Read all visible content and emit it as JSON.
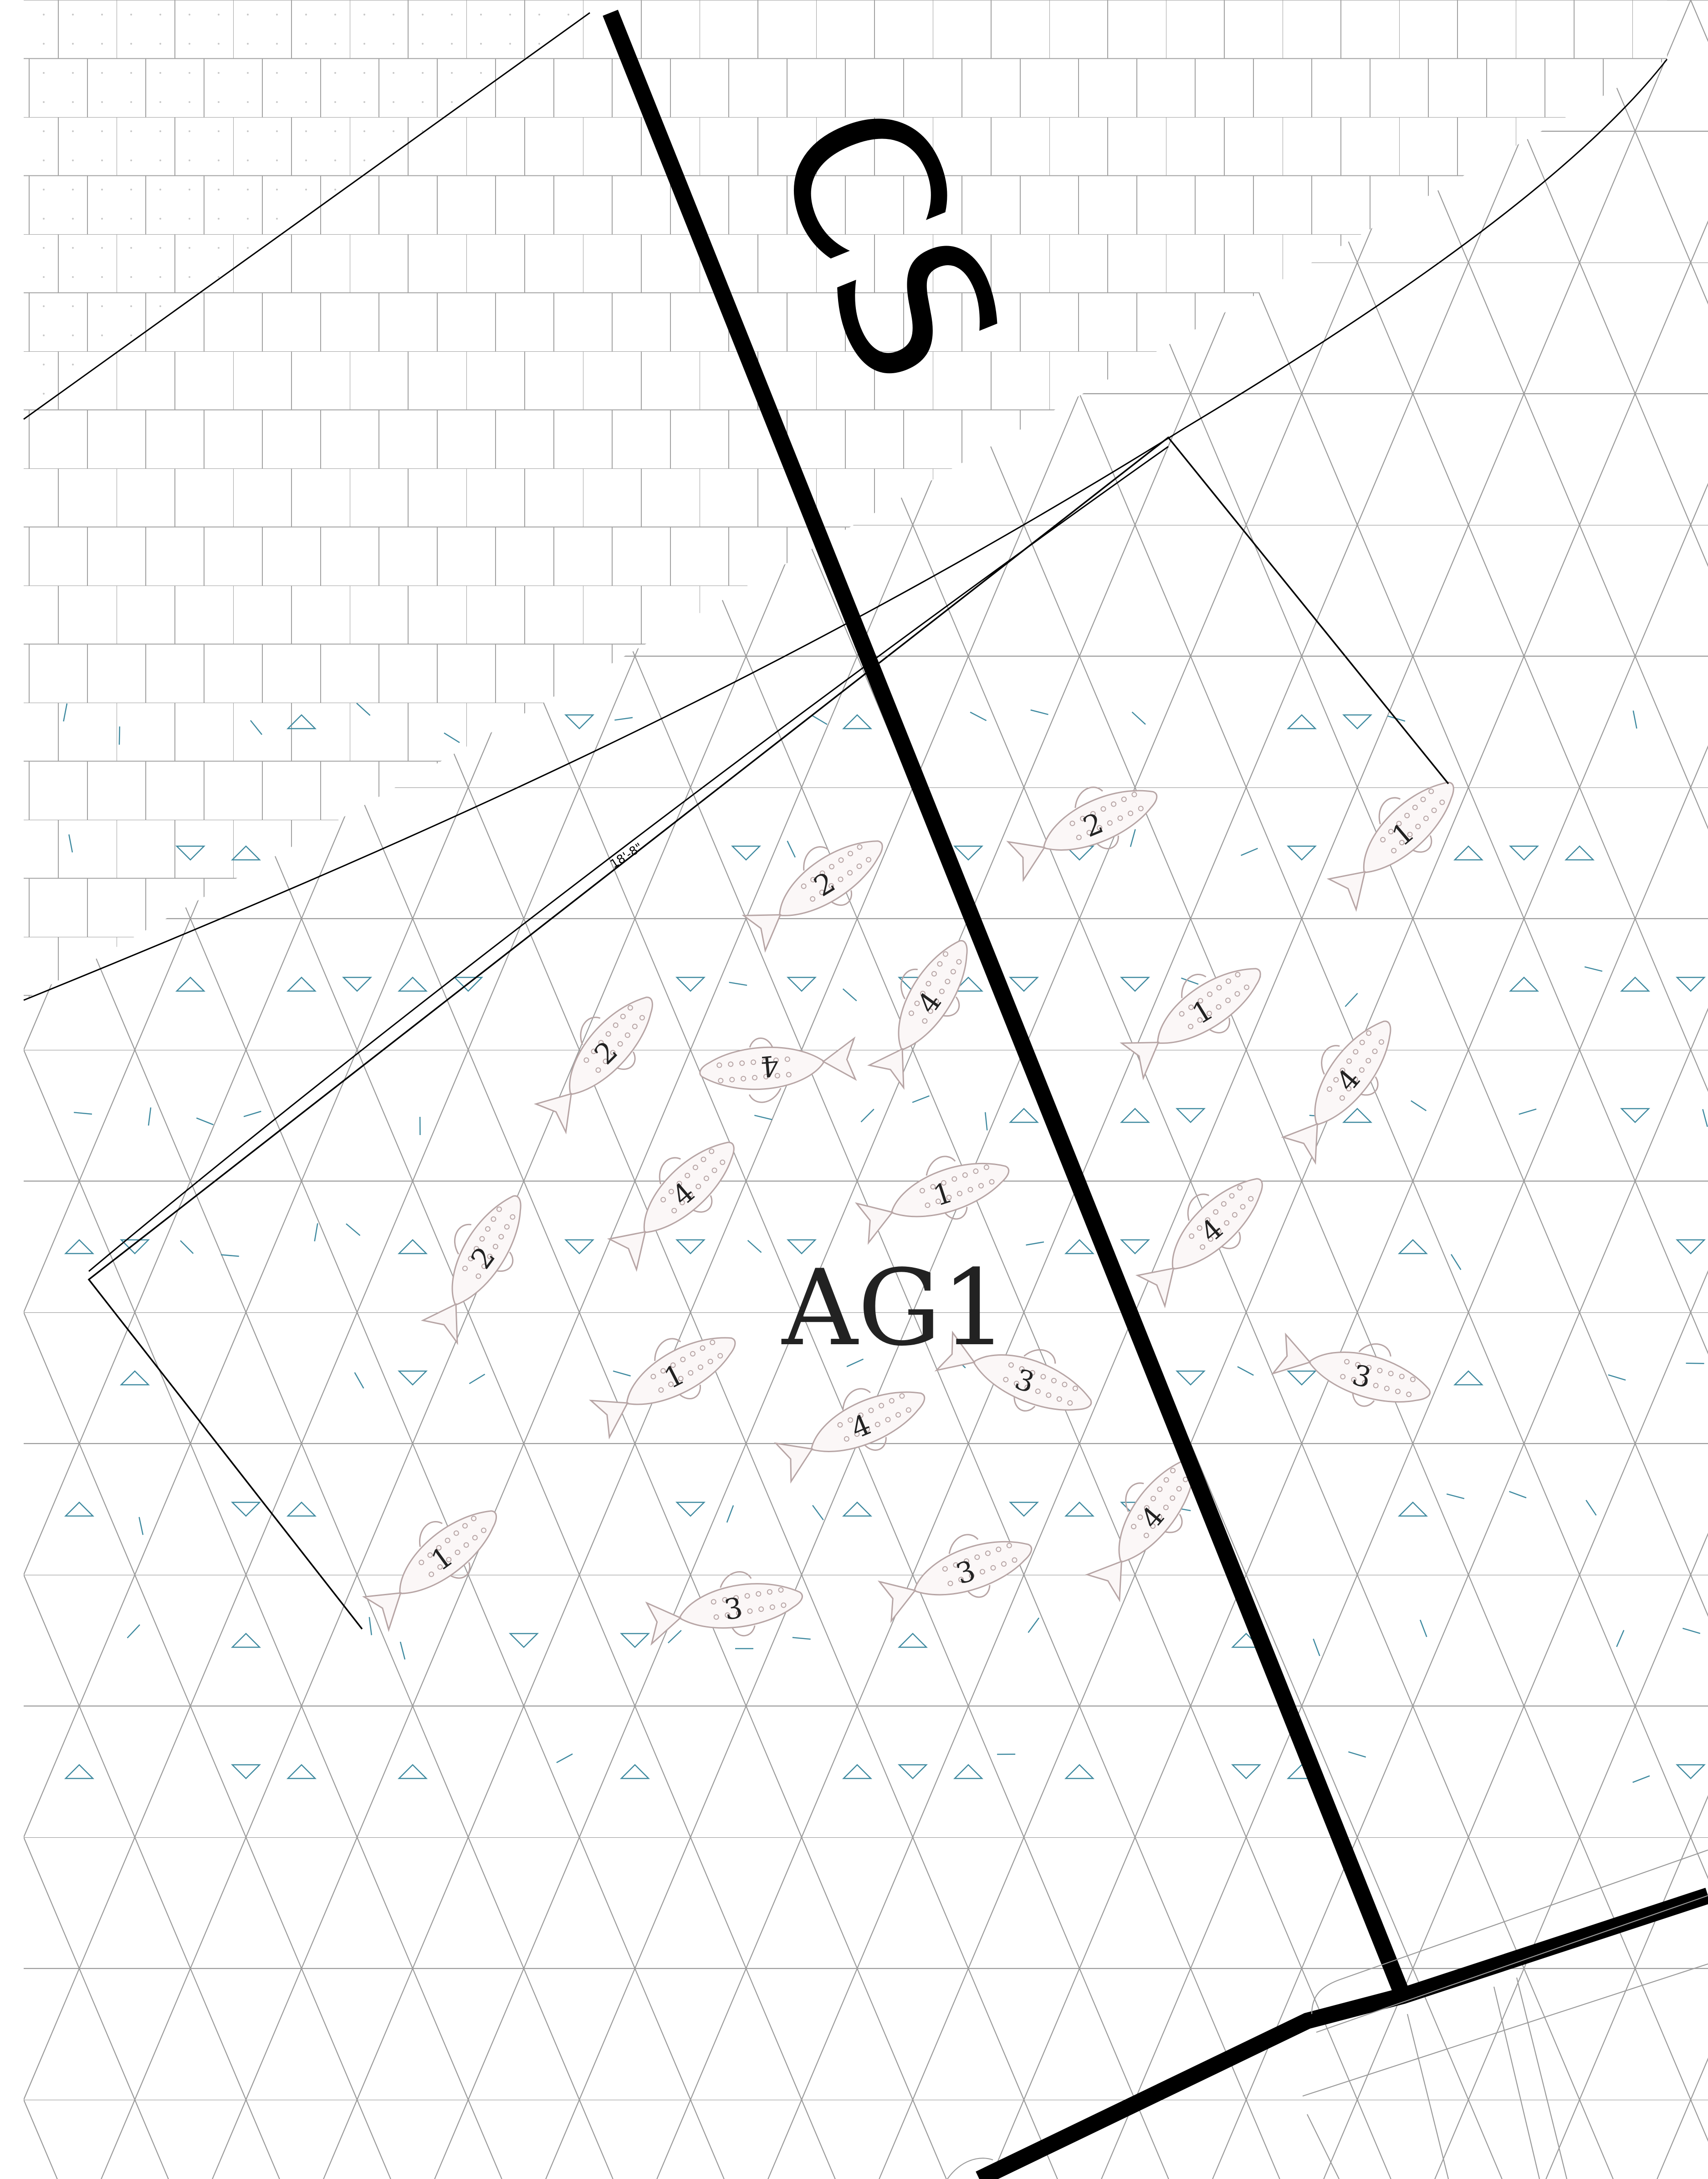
{
  "labels": {
    "zone_label": "CS",
    "area_label": "AG1",
    "dimension_label": "18'-8\""
  },
  "colors": {
    "background": "#ffffff",
    "grid_line": "#9a9a9a",
    "boundary_line": "#000000",
    "main_line": "#000000",
    "glass_mark": "#3f8aa0",
    "fish_outline": "#b7a5a5",
    "fish_number": "#222222"
  },
  "fish": [
    {
      "number": "2",
      "angle": -25
    },
    {
      "number": "1",
      "angle": -45
    },
    {
      "number": "2",
      "angle": -35
    },
    {
      "number": "4",
      "angle": -60
    },
    {
      "number": "1",
      "angle": -35
    },
    {
      "number": "2",
      "angle": -50
    },
    {
      "number": "4",
      "angle": 175
    },
    {
      "number": "4",
      "angle": -55
    },
    {
      "number": "4",
      "angle": -45
    },
    {
      "number": "1",
      "angle": -20
    },
    {
      "number": "2",
      "angle": -60
    },
    {
      "number": "4",
      "angle": -45
    },
    {
      "number": "1",
      "angle": -30
    },
    {
      "number": "3",
      "angle": 20
    },
    {
      "number": "3",
      "angle": 15
    },
    {
      "number": "4",
      "angle": -25
    },
    {
      "number": "1",
      "angle": -40
    },
    {
      "number": "4",
      "angle": -55
    },
    {
      "number": "3",
      "angle": -10
    },
    {
      "number": "3",
      "angle": -20
    }
  ]
}
